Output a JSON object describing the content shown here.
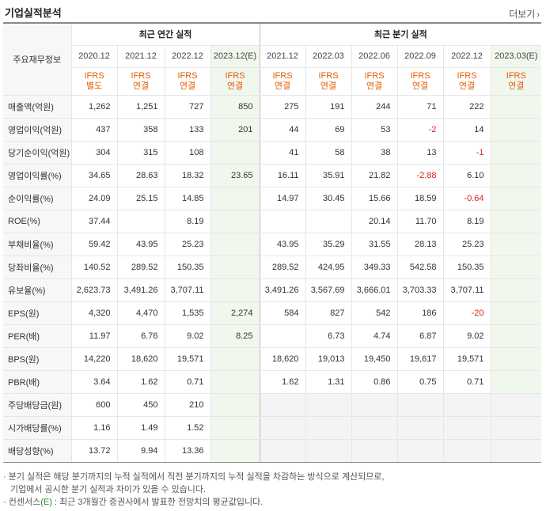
{
  "section_title": "기업실적분석",
  "more_label": "더보기",
  "table": {
    "corner_label": "주요재무정보",
    "annual_group": "최근 연간 실적",
    "quarter_group": "최근 분기 실적",
    "periods": [
      "2020.12",
      "2021.12",
      "2022.12",
      "2023.12(E)",
      "2021.12",
      "2022.03",
      "2022.06",
      "2022.09",
      "2022.12",
      "2023.03(E)"
    ],
    "ifrs_top": [
      "IFRS",
      "IFRS",
      "IFRS",
      "IFRS",
      "IFRS",
      "IFRS",
      "IFRS",
      "IFRS",
      "IFRS",
      "IFRS"
    ],
    "ifrs_bottom": [
      "별도",
      "연결",
      "연결",
      "연결",
      "연결",
      "연결",
      "연결",
      "연결",
      "연결",
      "연결"
    ],
    "rows": [
      {
        "label": "매출액(억원)",
        "values": [
          "1,262",
          "1,251",
          "727",
          "850",
          "275",
          "191",
          "244",
          "71",
          "222",
          ""
        ]
      },
      {
        "label": "영업이익(억원)",
        "values": [
          "437",
          "358",
          "133",
          "201",
          "44",
          "69",
          "53",
          "-2",
          "14",
          ""
        ]
      },
      {
        "label": "당기순이익(억원)",
        "values": [
          "304",
          "315",
          "108",
          "",
          "41",
          "58",
          "38",
          "13",
          "-1",
          ""
        ]
      },
      {
        "label": "영업이익률(%)",
        "values": [
          "34.65",
          "28.63",
          "18.32",
          "23.65",
          "16.11",
          "35.91",
          "21.82",
          "-2.88",
          "6.10",
          ""
        ]
      },
      {
        "label": "순이익률(%)",
        "values": [
          "24.09",
          "25.15",
          "14.85",
          "",
          "14.97",
          "30.45",
          "15.66",
          "18.59",
          "-0.64",
          ""
        ]
      },
      {
        "label": "ROE(%)",
        "values": [
          "37.44",
          "",
          "8.19",
          "",
          "",
          "",
          "20.14",
          "11.70",
          "8.19",
          ""
        ]
      },
      {
        "label": "부채비율(%)",
        "values": [
          "59.42",
          "43.95",
          "25.23",
          "",
          "43.95",
          "35.29",
          "31.55",
          "28.13",
          "25.23",
          ""
        ]
      },
      {
        "label": "당좌비율(%)",
        "values": [
          "140.52",
          "289.52",
          "150.35",
          "",
          "289.52",
          "424.95",
          "349.33",
          "542.58",
          "150.35",
          ""
        ]
      },
      {
        "label": "유보율(%)",
        "values": [
          "2,623.73",
          "3,491.26",
          "3,707.11",
          "",
          "3,491.26",
          "3,567.69",
          "3,666.01",
          "3,703.33",
          "3,707.11",
          ""
        ]
      },
      {
        "label": "EPS(원)",
        "values": [
          "4,320",
          "4,470",
          "1,535",
          "2,274",
          "584",
          "827",
          "542",
          "186",
          "-20",
          ""
        ]
      },
      {
        "label": "PER(배)",
        "values": [
          "11.97",
          "6.76",
          "9.02",
          "8.25",
          "",
          "6.73",
          "4.74",
          "6.87",
          "9.02",
          ""
        ]
      },
      {
        "label": "BPS(원)",
        "values": [
          "14,220",
          "18,620",
          "19,571",
          "",
          "18,620",
          "19,013",
          "19,450",
          "19,617",
          "19,571",
          ""
        ]
      },
      {
        "label": "PBR(배)",
        "values": [
          "3.64",
          "1.62",
          "0.71",
          "",
          "1.62",
          "1.31",
          "0.86",
          "0.75",
          "0.71",
          ""
        ]
      },
      {
        "label": "주당배당금(원)",
        "values": [
          "600",
          "450",
          "210",
          "",
          "",
          "",
          "",
          "",
          "",
          ""
        ]
      },
      {
        "label": "시가배당률(%)",
        "values": [
          "1.16",
          "1.49",
          "1.52",
          "",
          "",
          "",
          "",
          "",
          "",
          ""
        ]
      },
      {
        "label": "배당성향(%)",
        "values": [
          "13.72",
          "9.94",
          "13.36",
          "",
          "",
          "",
          "",
          "",
          "",
          ""
        ]
      }
    ]
  },
  "notes": [
    "· 분기 실적은 해당 분기까지의 누적 실적에서 직전 분기까지의 누적 실적을 차감하는 방식으로 계산되므로,",
    "기업에서 공시한 분기 실적과 차이가 있을 수 있습니다.",
    "· 컨센서스",
    "(E)",
    " : 최근 3개월간 증권사에서 발표한 전망치의 평균값입니다."
  ]
}
